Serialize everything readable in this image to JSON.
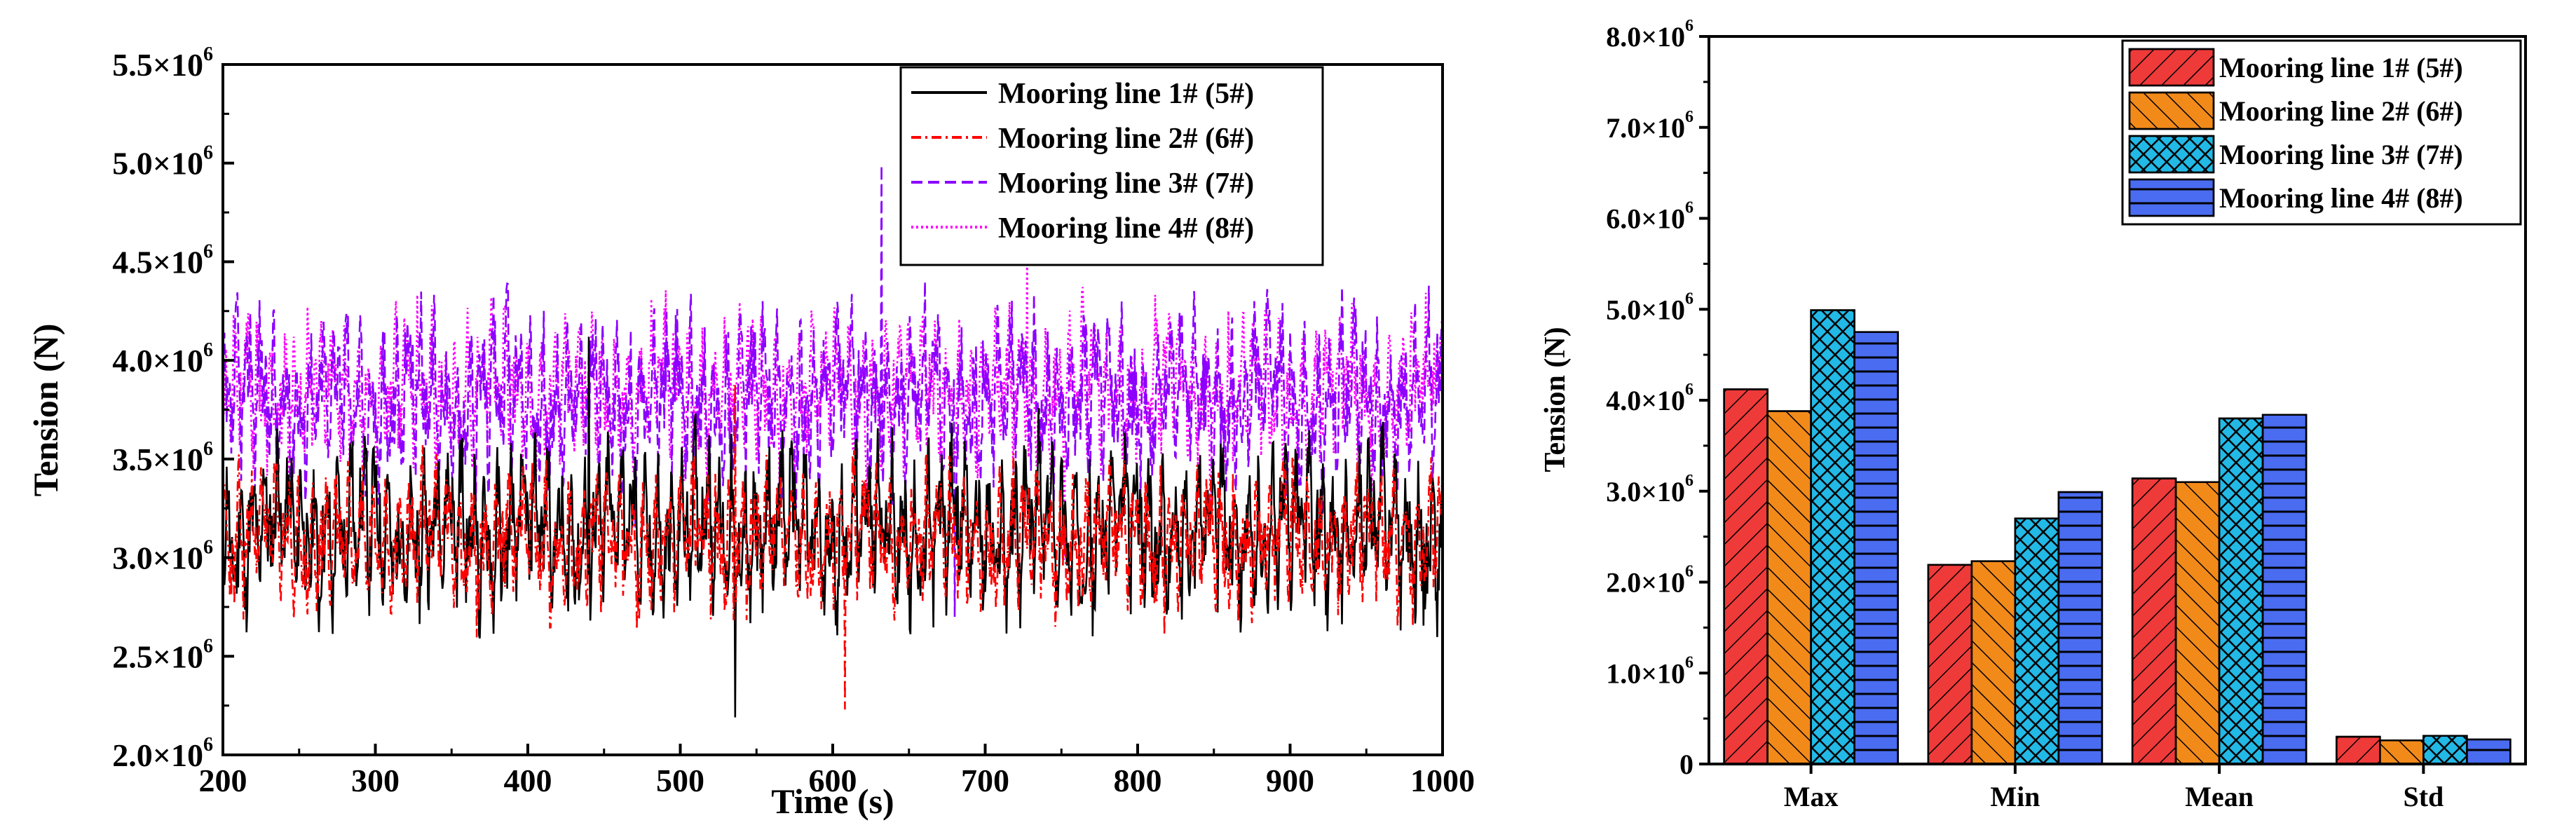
{
  "chart_data": [
    {
      "type": "line",
      "xlabel": "Time (s)",
      "ylabel": "Tension (N)",
      "xlim": [
        200,
        1000
      ],
      "ylim": [
        2000000,
        5500000
      ],
      "x_ticks": [
        "200",
        "300",
        "400",
        "500",
        "600",
        "700",
        "800",
        "900",
        "1000"
      ],
      "y_ticks": [
        {
          "mantissa": "2.0×10",
          "exp": "6"
        },
        {
          "mantissa": "2.5×10",
          "exp": "6"
        },
        {
          "mantissa": "3.0×10",
          "exp": "6"
        },
        {
          "mantissa": "3.5×10",
          "exp": "6"
        },
        {
          "mantissa": "4.0×10",
          "exp": "6"
        },
        {
          "mantissa": "4.5×10",
          "exp": "6"
        },
        {
          "mantissa": "5.0×10",
          "exp": "6"
        },
        {
          "mantissa": "5.5×10",
          "exp": "6"
        }
      ],
      "legend_position": "top-right",
      "series": [
        {
          "name": "Mooring line 1# (5#)",
          "color": "#000000",
          "dash": "solid",
          "mean": 3140000,
          "min": 2190000,
          "max": 4120000,
          "std": 300000
        },
        {
          "name": "Mooring line 2# (6#)",
          "color": "#ff0000",
          "dash": "dashdot",
          "mean": 3100000,
          "min": 2230000,
          "max": 3880000,
          "std": 260000
        },
        {
          "name": "Mooring line 3# (7#)",
          "color": "#8b00ff",
          "dash": "dash",
          "mean": 3800000,
          "min": 2700000,
          "max": 4990000,
          "std": 310000
        },
        {
          "name": "Mooring line 4# (8#)",
          "color": "#ff00ff",
          "dash": "dot",
          "mean": 3840000,
          "min": 2990000,
          "max": 4750000,
          "std": 270000
        }
      ]
    },
    {
      "type": "bar",
      "ylabel": "Tension (N)",
      "ylim": [
        0,
        8000000
      ],
      "categories": [
        "Max",
        "Min",
        "Mean",
        "Std"
      ],
      "y_ticks": [
        {
          "mantissa": "0",
          "exp": ""
        },
        {
          "mantissa": "1.0×10",
          "exp": "6"
        },
        {
          "mantissa": "2.0×10",
          "exp": "6"
        },
        {
          "mantissa": "3.0×10",
          "exp": "6"
        },
        {
          "mantissa": "4.0×10",
          "exp": "6"
        },
        {
          "mantissa": "5.0×10",
          "exp": "6"
        },
        {
          "mantissa": "6.0×10",
          "exp": "6"
        },
        {
          "mantissa": "7.0×10",
          "exp": "6"
        },
        {
          "mantissa": "8.0×10",
          "exp": "6"
        }
      ],
      "legend_position": "top-right",
      "series": [
        {
          "name": "Mooring line 1# (5#)",
          "color": "#ef3a3a",
          "pattern": "diag-right",
          "values": [
            4120000,
            2190000,
            3140000,
            300000
          ]
        },
        {
          "name": "Mooring line 2# (6#)",
          "color": "#f28a1a",
          "pattern": "diag-left",
          "values": [
            3880000,
            2230000,
            3100000,
            260000
          ]
        },
        {
          "name": "Mooring line 3# (7#)",
          "color": "#23b9e6",
          "pattern": "crosshatch",
          "values": [
            4990000,
            2700000,
            3800000,
            310000
          ]
        },
        {
          "name": "Mooring line 4# (8#)",
          "color": "#4a6cf0",
          "pattern": "horizontal",
          "values": [
            4750000,
            2990000,
            3840000,
            270000
          ]
        }
      ]
    }
  ]
}
